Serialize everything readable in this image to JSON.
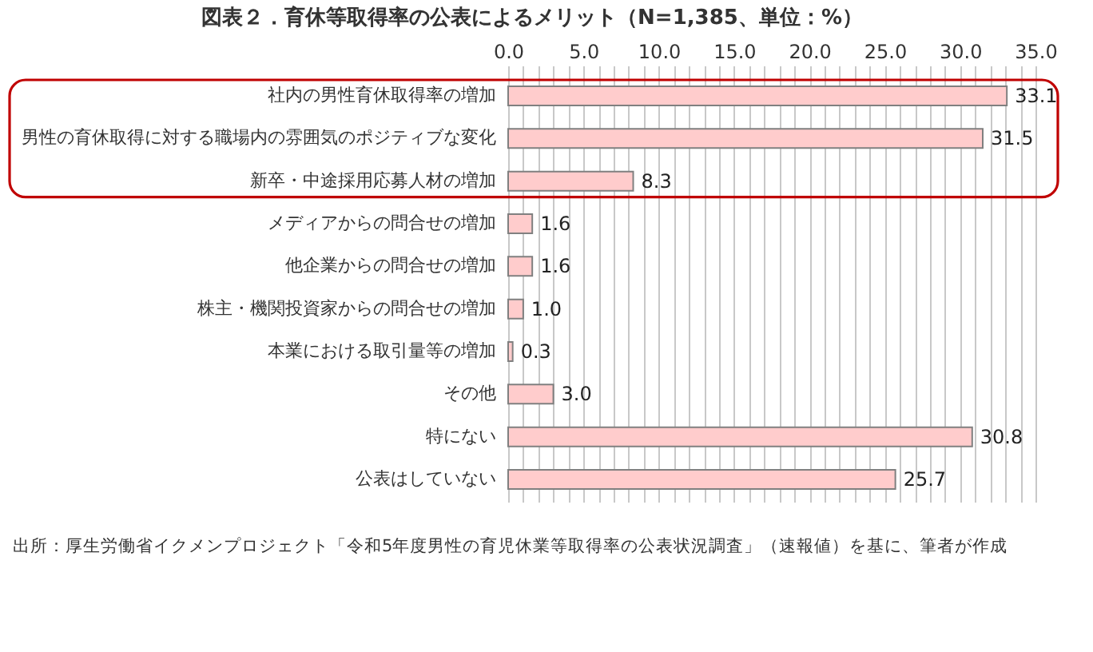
{
  "chart_data": {
    "type": "bar",
    "orientation": "horizontal",
    "title": "図表２．育休等取得率の公表によるメリット（N=1,385、単位：%）",
    "categories": [
      "社内の男性育休取得率の増加",
      "男性の育休取得に対する職場内の雰囲気のポジティブな変化",
      "新卒・中途採用応募人材の増加",
      "メディアからの問合せの増加",
      "他企業からの問合せの増加",
      "株主・機関投資家からの問合せの増加",
      "本業における取引量等の増加",
      "その他",
      "特にない",
      "公表はしていない"
    ],
    "values": [
      33.1,
      31.5,
      8.3,
      1.6,
      1.6,
      1.0,
      0.3,
      3.0,
      30.8,
      25.7
    ],
    "value_labels": [
      "33.1",
      "31.5",
      "8.3",
      "1.6",
      "1.6",
      "1.0",
      "0.3",
      "3.0",
      "30.8",
      "25.7"
    ],
    "color": "#ffcccc",
    "xlim": [
      0,
      35
    ],
    "xticks": [
      {
        "value": 0,
        "label": "0.0"
      },
      {
        "value": 1,
        "label": null
      },
      {
        "value": 2,
        "label": null
      },
      {
        "value": 3,
        "label": null
      },
      {
        "value": 4,
        "label": null
      },
      {
        "value": 5,
        "label": "5.0"
      },
      {
        "value": 6,
        "label": null
      },
      {
        "value": 7,
        "label": null
      },
      {
        "value": 8,
        "label": null
      },
      {
        "value": 9,
        "label": null
      },
      {
        "value": 10,
        "label": "10.0"
      },
      {
        "value": 11,
        "label": null
      },
      {
        "value": 12,
        "label": null
      },
      {
        "value": 13,
        "label": null
      },
      {
        "value": 14,
        "label": null
      },
      {
        "value": 15,
        "label": "15.0"
      },
      {
        "value": 16,
        "label": null
      },
      {
        "value": 17,
        "label": null
      },
      {
        "value": 18,
        "label": null
      },
      {
        "value": 19,
        "label": null
      },
      {
        "value": 20,
        "label": "20.0"
      },
      {
        "value": 21,
        "label": null
      },
      {
        "value": 22,
        "label": null
      },
      {
        "value": 23,
        "label": null
      },
      {
        "value": 24,
        "label": null
      },
      {
        "value": 25,
        "label": "25.0"
      },
      {
        "value": 26,
        "label": null
      },
      {
        "value": 27,
        "label": null
      },
      {
        "value": 28,
        "label": null
      },
      {
        "value": 29,
        "label": null
      },
      {
        "value": 30,
        "label": "30.0"
      },
      {
        "value": 31,
        "label": null
      },
      {
        "value": 32,
        "label": null
      },
      {
        "value": 33,
        "label": null
      },
      {
        "value": 34,
        "label": null
      },
      {
        "value": 35,
        "label": "35.0"
      }
    ],
    "grid": "x",
    "annotations": [
      "出所：厚生労働省イクメンプロジェクト「令和5年度男性の育児休業等取得率の公表状況調査」（速報値）を基に、筆者が作成"
    ]
  }
}
